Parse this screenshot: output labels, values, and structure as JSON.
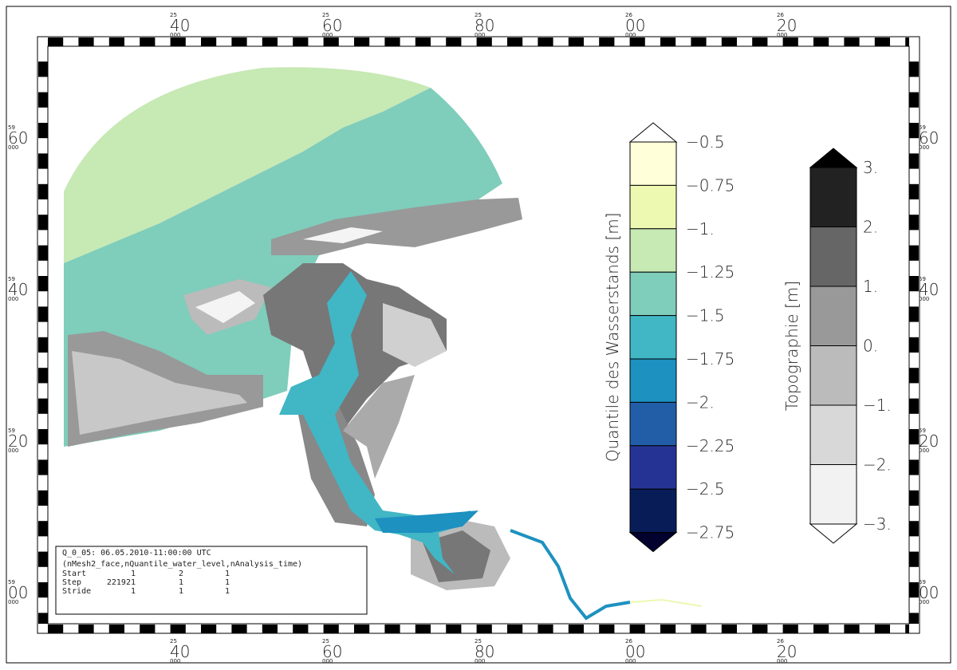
{
  "frame": {
    "top_labels": [
      {
        "major": "25",
        "minor": "40",
        "sub": "000"
      },
      {
        "major": "25",
        "minor": "60",
        "sub": "000"
      },
      {
        "major": "25",
        "minor": "80",
        "sub": "000"
      },
      {
        "major": "26",
        "minor": "00",
        "sub": "000"
      },
      {
        "major": "26",
        "minor": "20",
        "sub": "000"
      }
    ],
    "side_labels": [
      {
        "major": "59",
        "minor": "60",
        "sub": "000"
      },
      {
        "major": "59",
        "minor": "40",
        "sub": "000"
      },
      {
        "major": "59",
        "minor": "20",
        "sub": "000"
      },
      {
        "major": "59",
        "minor": "00",
        "sub": "000"
      }
    ]
  },
  "water_legend": {
    "title": "Quantile des Wasserstands [m]",
    "labels": [
      "−0.5",
      "−0.75",
      "−1.",
      "−1.25",
      "−1.5",
      "−1.75",
      "−2.",
      "−2.25",
      "−2.5",
      "−2.75"
    ],
    "colors": [
      "#ffffff",
      "#ffffd9",
      "#edf8b1",
      "#c7e9b4",
      "#7fcdbb",
      "#41b6c4",
      "#1d91c0",
      "#225ea8",
      "#253494",
      "#081d58",
      "#03012e"
    ]
  },
  "topo_legend": {
    "title": "Topographie [m]",
    "labels": [
      "3.",
      "2.",
      "1.",
      "0.",
      "−1.",
      "−2.",
      "−3."
    ],
    "colors": [
      "#000000",
      "#222222",
      "#666666",
      "#999999",
      "#bbbbbb",
      "#d8d8d8",
      "#f2f2f2",
      "#ffffff"
    ]
  },
  "info": {
    "title": "Q_0_05: 06.05.2010-11:00:00 UTC",
    "dims": "(nMesh2_face,nQuantile_water_level,nAnalysis_time)",
    "rows": [
      [
        "Start",
        "1",
        "2",
        "1"
      ],
      [
        "Step",
        "221921",
        "1",
        "1"
      ],
      [
        "Stride",
        "1",
        "1",
        "1"
      ]
    ]
  }
}
